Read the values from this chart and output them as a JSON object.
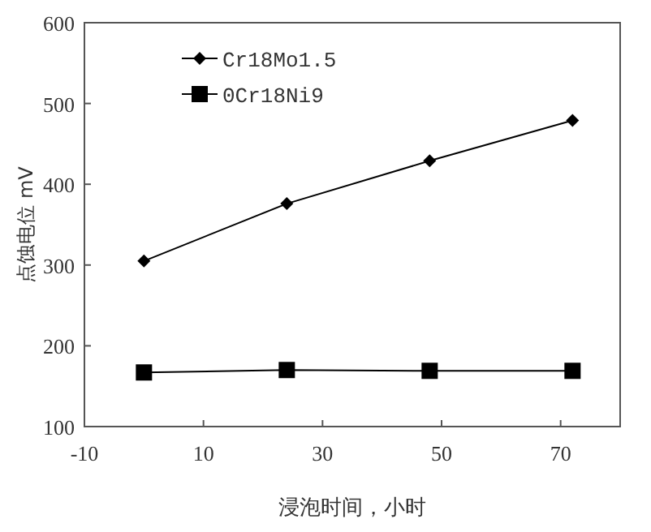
{
  "chart_data": {
    "type": "line",
    "xlabel": "浸泡时间，小时",
    "ylabel": "点蚀电位  mV",
    "x": [
      0,
      24,
      48,
      72
    ],
    "series": [
      {
        "name": "Cr18Mo1.5",
        "color": "#000000",
        "marker": "diamond",
        "values": [
          305,
          376,
          429,
          479
        ]
      },
      {
        "name": "0Cr18Ni9",
        "color": "#000000",
        "marker": "square",
        "values": [
          167,
          170,
          169,
          169
        ]
      }
    ],
    "xlim": [
      -10,
      80
    ],
    "xticks": [
      -10,
      10,
      30,
      50,
      70
    ],
    "ylim": [
      100,
      600
    ],
    "yticks": [
      100,
      200,
      300,
      400,
      500,
      600
    ],
    "grid": false,
    "legend": "top left",
    "line_style": "solid"
  }
}
